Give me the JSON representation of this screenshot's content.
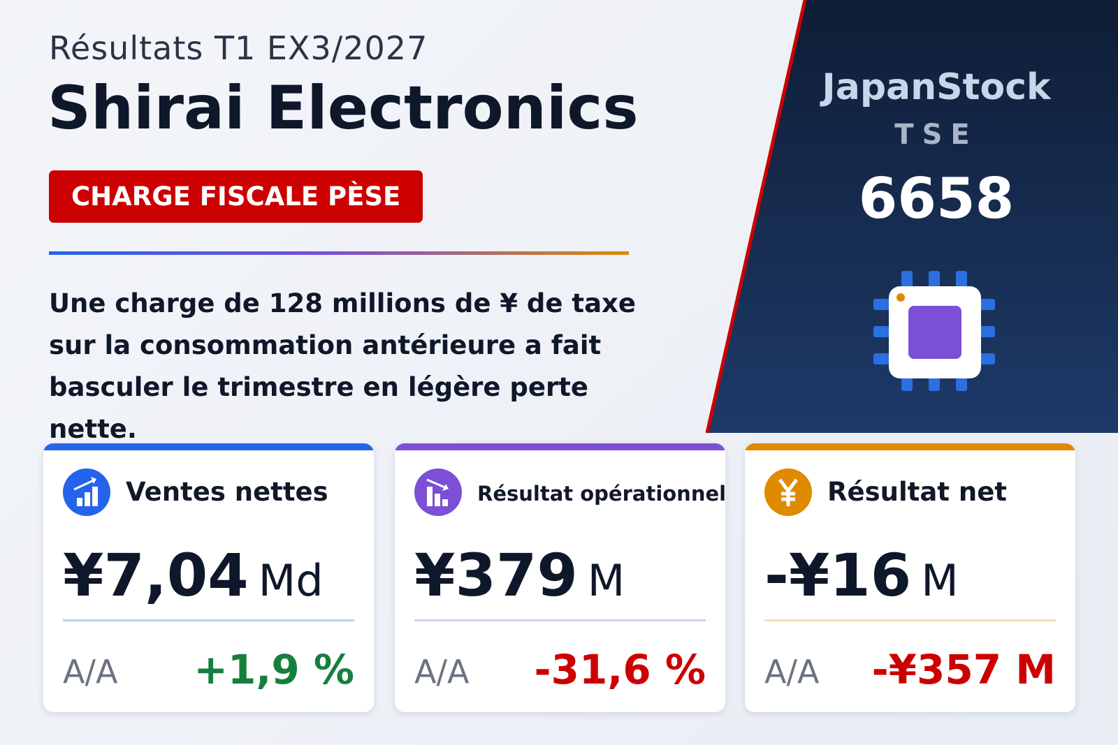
{
  "header": {
    "subtitle": "Résultats T1 EX3/2027",
    "title": "Shirai Electronics",
    "badge": "CHARGE FISCALE PÈSE"
  },
  "description": "Une charge de 128 millions de ¥ de taxe sur la consommation antérieure a fait basculer le trimestre en légère perte nette.",
  "brand": {
    "name": "JapanStock",
    "exchange": "TSE",
    "code": "6658"
  },
  "cards": [
    {
      "label": "Ventes nettes",
      "value": "¥7,04",
      "unit": "Md",
      "yoy_label": "A/A",
      "yoy_value": "+1,9 %"
    },
    {
      "label": "Résultat opérationnel",
      "value": "¥379",
      "unit": "M",
      "yoy_label": "A/A",
      "yoy_value": "-31,6 %"
    },
    {
      "label": "Résultat net",
      "value": "-¥16",
      "unit": "M",
      "yoy_label": "A/A",
      "yoy_value": "-¥357 M"
    }
  ]
}
